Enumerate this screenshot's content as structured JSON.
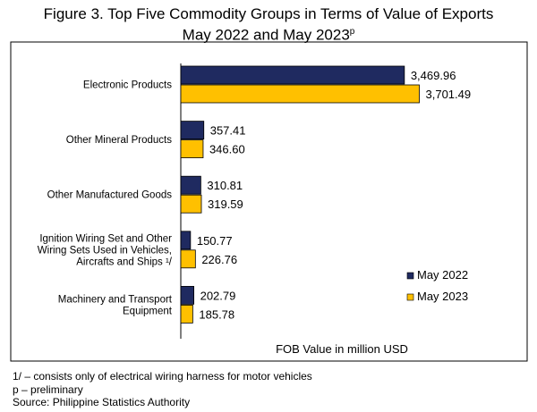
{
  "chart_data": {
    "type": "bar",
    "orientation": "horizontal",
    "title_line1": "Figure 3. Top Five Commodity Groups in Terms of Value of Exports",
    "title_line2": "May 2022 and May 2023",
    "title_superscript": "p",
    "xlabel": "FOB Value in million USD",
    "ylabel": "",
    "xlim": [
      0,
      5000
    ],
    "grid": false,
    "legend_position": "right",
    "categories": [
      [
        "Electronic Products"
      ],
      [
        "Other Mineral Products"
      ],
      [
        "Other Manufactured Goods"
      ],
      [
        "Ignition Wiring Set and Other",
        "Wiring Sets Used in Vehicles,",
        "Aircrafts and Ships ¹/"
      ],
      [
        "Machinery and Transport",
        "Equipment"
      ]
    ],
    "series": [
      {
        "name": "May 2022",
        "color": "#1f2a60",
        "values": [
          3469.96,
          357.41,
          310.81,
          150.77,
          202.79
        ],
        "labels": [
          "3,469.96",
          "357.41",
          "310.81",
          "150.77",
          "202.79"
        ]
      },
      {
        "name": "May 2023",
        "color": "#ffc000",
        "values": [
          3701.49,
          346.6,
          319.59,
          226.76,
          185.78
        ],
        "labels": [
          "3,701.49",
          "346.60",
          "319.59",
          "226.76",
          "185.78"
        ]
      }
    ]
  },
  "footnotes": {
    "note1": "1/ – consists only of electrical wiring harness for motor vehicles",
    "note2": "p – preliminary",
    "source": "Source:  Philippine Statistics Authority"
  }
}
